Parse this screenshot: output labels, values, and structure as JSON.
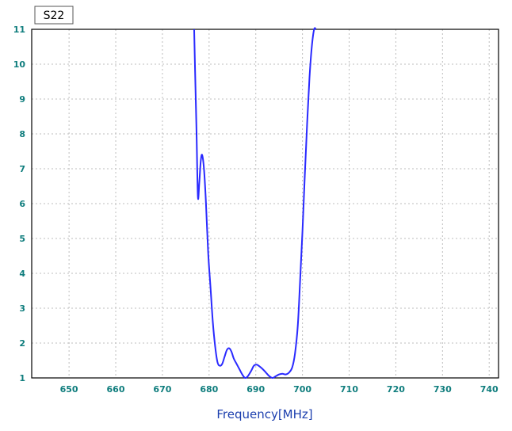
{
  "chart_data": {
    "type": "line",
    "title": "S22",
    "xlabel": "Frequency[MHz]",
    "ylabel": "",
    "xlim": [
      642,
      742
    ],
    "ylim": [
      1,
      11
    ],
    "x_ticks": [
      650,
      660,
      670,
      680,
      690,
      700,
      710,
      720,
      730,
      740
    ],
    "y_ticks": [
      1,
      2,
      3,
      4,
      5,
      6,
      7,
      8,
      9,
      10,
      11
    ],
    "grid": true,
    "series": [
      {
        "color": "#2a2aff",
        "x": [
          676.8,
          677.0,
          677.3,
          677.6,
          677.9,
          678.2,
          678.5,
          678.9,
          679.3,
          679.8,
          680.3,
          680.8,
          681.3,
          681.8,
          682.3,
          682.8,
          683.3,
          683.8,
          684.3,
          684.8,
          685.3,
          685.9,
          686.5,
          687.1,
          687.7,
          688.3,
          689.0,
          689.6,
          690.2,
          690.8,
          691.5,
          692.2,
          692.9,
          693.6,
          694.3,
          695.0,
          695.7,
          696.4,
          697.1,
          697.8,
          698.4,
          699.0,
          699.5,
          700.0,
          700.5,
          701.0,
          701.5,
          702.0,
          702.5,
          702.9
        ],
        "y": [
          11.0,
          9.8,
          8.1,
          6.2,
          6.6,
          7.2,
          7.4,
          7.0,
          6.1,
          4.6,
          3.6,
          2.6,
          1.9,
          1.45,
          1.35,
          1.4,
          1.6,
          1.8,
          1.85,
          1.75,
          1.55,
          1.4,
          1.25,
          1.1,
          1.0,
          1.05,
          1.2,
          1.35,
          1.38,
          1.33,
          1.25,
          1.15,
          1.05,
          1.0,
          1.05,
          1.1,
          1.12,
          1.1,
          1.15,
          1.3,
          1.7,
          2.5,
          3.8,
          5.2,
          6.8,
          8.3,
          9.6,
          10.5,
          11.0,
          11.0
        ]
      }
    ]
  },
  "colors": {
    "line": "#2a2aff",
    "tick_y": "#0f7d7d",
    "tick_x": "#0f7d7d",
    "axis_label": "#1c3fae",
    "grid": "#bdbdbd",
    "frame": "#000000"
  }
}
